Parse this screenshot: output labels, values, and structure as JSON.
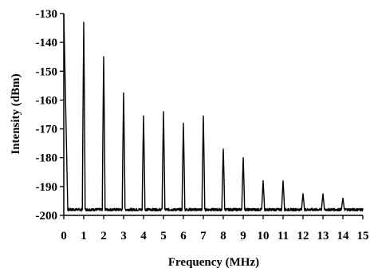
{
  "chart_data": {
    "type": "line",
    "title": "",
    "xlabel": "Frequency (MHz)",
    "ylabel": "Intensity (dBm)",
    "xlim": [
      0,
      15
    ],
    "ylim": [
      -200,
      -130
    ],
    "xticks": [
      "0",
      "1",
      "2",
      "3",
      "4",
      "5",
      "6",
      "7",
      "8",
      "9",
      "10",
      "11",
      "12",
      "13",
      "14",
      "15"
    ],
    "yticks": [
      "-130",
      "-140",
      "-150",
      "-160",
      "-170",
      "-180",
      "-190",
      "-200"
    ],
    "grid": false,
    "legend": "none",
    "noise_floor": -198,
    "peaks": [
      {
        "x": 0.0,
        "y": -130
      },
      {
        "x": 1.0,
        "y": -133
      },
      {
        "x": 2.0,
        "y": -145
      },
      {
        "x": 3.0,
        "y": -157.5
      },
      {
        "x": 4.0,
        "y": -165.5
      },
      {
        "x": 5.0,
        "y": -164
      },
      {
        "x": 6.0,
        "y": -168
      },
      {
        "x": 7.0,
        "y": -165.5
      },
      {
        "x": 8.0,
        "y": -177
      },
      {
        "x": 9.0,
        "y": -180
      },
      {
        "x": 10.0,
        "y": -188
      },
      {
        "x": 11.0,
        "y": -188
      },
      {
        "x": 12.0,
        "y": -192.5
      },
      {
        "x": 13.0,
        "y": -192.5
      },
      {
        "x": 14.0,
        "y": -194
      }
    ],
    "line_color": "#000000"
  }
}
